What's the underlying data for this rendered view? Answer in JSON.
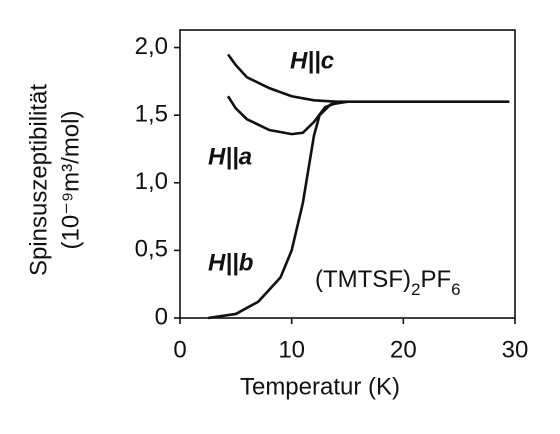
{
  "chart_data": {
    "type": "line",
    "x_label": "Temperatur (K)",
    "y_label": [
      "Spinsuszeptibilität",
      "(10⁻⁹m³/mol)"
    ],
    "annotation": [
      {
        "text": "(TMTSF)"
      },
      {
        "text": "2",
        "sub": true
      },
      {
        "text": "PF"
      },
      {
        "text": "6",
        "sub": true
      }
    ],
    "xlim": [
      0,
      30
    ],
    "xticks": [
      0,
      10,
      20,
      30
    ],
    "ylim": [
      0,
      2.13
    ],
    "yticks": [
      0,
      {
        "value": 0.5,
        "label": "0,5"
      },
      {
        "value": 1,
        "label": "1,0"
      },
      {
        "value": 1.5,
        "label": "1,5"
      },
      {
        "value": 2,
        "label": "2,0"
      }
    ],
    "series": [
      {
        "name": "H||c",
        "color": "#111111",
        "x": [
          4.3,
          5,
          6,
          8,
          10,
          12,
          14,
          20,
          29.5
        ],
        "values": [
          1.95,
          1.87,
          1.78,
          1.7,
          1.64,
          1.61,
          1.6,
          1.6,
          1.6
        ]
      },
      {
        "name": "H||a",
        "color": "#111111",
        "x": [
          4.3,
          5,
          6,
          8,
          10,
          11,
          12,
          13,
          14
        ],
        "values": [
          1.64,
          1.55,
          1.47,
          1.39,
          1.36,
          1.37,
          1.45,
          1.56,
          1.59
        ]
      },
      {
        "name": "H||b",
        "color": "#111111",
        "x": [
          2.5,
          5,
          7,
          9,
          10,
          11,
          11.5,
          12,
          12.5,
          13.5,
          15
        ],
        "values": [
          0,
          0.03,
          0.12,
          0.3,
          0.5,
          0.85,
          1.1,
          1.35,
          1.5,
          1.58,
          1.6
        ]
      }
    ]
  }
}
